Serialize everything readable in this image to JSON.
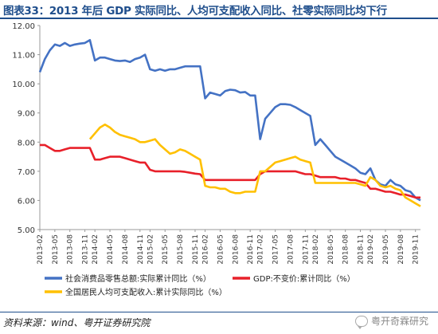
{
  "title": "图表33：2013 年后 GDP 实际同比、人均可支配收入同比、社零实际同比均下行",
  "source": "资料来源：wind、粤开证券研究院",
  "watermark": "粤开奇霖研究",
  "chart_data": {
    "type": "line",
    "ylim": [
      5.0,
      12.0
    ],
    "yticks": [
      "5.00",
      "6.00",
      "7.00",
      "8.00",
      "9.00",
      "10.00",
      "11.00",
      "12.00"
    ],
    "x": [
      "2013-02",
      "2013-03",
      "2013-04",
      "2013-05",
      "2013-06",
      "2013-07",
      "2013-08",
      "2013-09",
      "2013-10",
      "2013-11",
      "2013-12",
      "2014-02",
      "2014-03",
      "2014-04",
      "2014-05",
      "2014-06",
      "2014-07",
      "2014-08",
      "2014-09",
      "2014-10",
      "2014-11",
      "2014-12",
      "2015-02",
      "2015-03",
      "2015-04",
      "2015-05",
      "2015-06",
      "2015-07",
      "2015-08",
      "2015-09",
      "2015-10",
      "2015-11",
      "2015-12",
      "2016-02",
      "2016-03",
      "2016-04",
      "2016-05",
      "2016-06",
      "2016-07",
      "2016-08",
      "2016-09",
      "2016-10",
      "2016-11",
      "2016-12",
      "2017-02",
      "2017-03",
      "2017-04",
      "2017-05",
      "2017-06",
      "2017-07",
      "2017-08",
      "2017-09",
      "2017-10",
      "2017-11",
      "2017-12",
      "2018-02",
      "2018-03",
      "2018-04",
      "2018-05",
      "2018-06",
      "2018-07",
      "2018-08",
      "2018-09",
      "2018-10",
      "2018-11",
      "2018-12",
      "2019-02",
      "2019-03",
      "2019-04",
      "2019-05",
      "2019-06",
      "2019-07",
      "2019-08",
      "2019-09",
      "2019-10",
      "2019-11",
      "2019-12"
    ],
    "xticks": [
      "2013-02",
      "2013-05",
      "2013-08",
      "2013-11",
      "2014-02",
      "2014-05",
      "2014-08",
      "2014-11",
      "2015-02",
      "2015-05",
      "2015-08",
      "2015-11",
      "2016-02",
      "2016-05",
      "2016-08",
      "2016-11",
      "2017-02",
      "2017-05",
      "2017-08",
      "2017-11",
      "2018-02",
      "2018-05",
      "2018-08",
      "2018-11",
      "2019-02",
      "2019-05",
      "2019-08",
      "2019-11"
    ],
    "series": [
      {
        "name": "社会消费品零售总额:实际累计同比（%）",
        "color": "#4472c4",
        "values": [
          10.4,
          10.85,
          11.15,
          11.35,
          11.3,
          11.4,
          11.3,
          11.35,
          11.38,
          11.4,
          11.5,
          10.8,
          10.9,
          10.9,
          10.85,
          10.8,
          10.78,
          10.8,
          10.75,
          10.85,
          10.9,
          11.0,
          10.5,
          10.45,
          10.5,
          10.45,
          10.5,
          10.5,
          10.55,
          10.6,
          10.6,
          10.6,
          10.6,
          9.5,
          9.7,
          9.65,
          9.6,
          9.75,
          9.8,
          9.78,
          9.7,
          9.72,
          9.6,
          9.6,
          8.1,
          8.8,
          9.0,
          9.2,
          9.3,
          9.3,
          9.28,
          9.2,
          9.1,
          9.0,
          8.9,
          7.9,
          8.1,
          7.9,
          7.7,
          7.5,
          7.4,
          7.3,
          7.2,
          7.1,
          6.95,
          6.9,
          7.1,
          6.7,
          6.55,
          6.5,
          6.7,
          6.55,
          6.5,
          6.35,
          6.3,
          6.1,
          6.0
        ]
      },
      {
        "name": "GDP:不变价:累计同比（%）",
        "color": "#e8202a",
        "values": [
          7.9,
          7.9,
          7.8,
          7.7,
          7.7,
          7.75,
          7.8,
          7.8,
          7.8,
          7.8,
          7.8,
          7.4,
          7.4,
          7.45,
          7.5,
          7.5,
          7.5,
          7.45,
          7.4,
          7.35,
          7.3,
          7.3,
          7.05,
          7.0,
          7.0,
          7.0,
          7.0,
          7.0,
          7.0,
          6.98,
          6.95,
          6.92,
          6.9,
          6.7,
          6.7,
          6.7,
          6.7,
          6.7,
          6.7,
          6.7,
          6.7,
          6.7,
          6.7,
          6.7,
          6.9,
          7.0,
          7.0,
          7.0,
          7.0,
          7.0,
          7.0,
          7.0,
          6.95,
          6.9,
          6.9,
          6.85,
          6.8,
          6.8,
          6.8,
          6.8,
          6.75,
          6.75,
          6.7,
          6.7,
          6.65,
          6.6,
          6.4,
          6.4,
          6.35,
          6.3,
          6.3,
          6.25,
          6.2,
          6.2,
          6.15,
          6.1,
          6.1
        ]
      },
      {
        "name": "全国居民人均可支配收入:累计实际同比（%）",
        "color": "#ffc000",
        "values": [
          null,
          null,
          null,
          null,
          null,
          null,
          null,
          null,
          null,
          null,
          8.1,
          8.3,
          8.5,
          8.6,
          8.5,
          8.35,
          8.25,
          8.2,
          8.15,
          8.1,
          8.0,
          8.0,
          8.05,
          8.1,
          7.9,
          7.75,
          7.6,
          7.65,
          7.75,
          7.7,
          7.6,
          7.5,
          7.4,
          6.5,
          6.45,
          6.45,
          6.4,
          6.4,
          6.3,
          6.25,
          6.25,
          6.3,
          6.3,
          6.3,
          7.0,
          7.0,
          7.15,
          7.3,
          7.35,
          7.4,
          7.45,
          7.5,
          7.4,
          7.35,
          7.3,
          6.6,
          6.6,
          6.6,
          6.6,
          6.6,
          6.6,
          6.6,
          6.6,
          6.6,
          6.55,
          6.5,
          6.8,
          6.7,
          6.5,
          6.45,
          6.5,
          6.4,
          6.35,
          6.1,
          6.0,
          5.9,
          5.8
        ]
      }
    ],
    "legend_position": "bottom"
  }
}
